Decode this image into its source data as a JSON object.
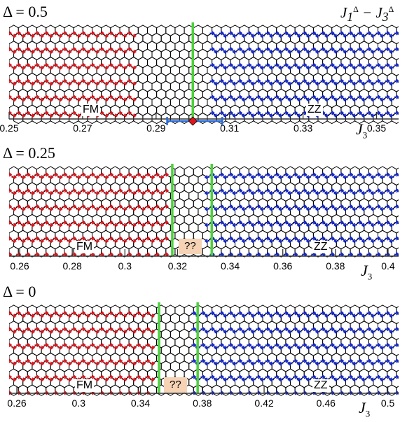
{
  "model_label": {
    "j1": "J",
    "j1_sub": "1",
    "j1_sup": "Δ",
    "dash": " − ",
    "j3": "J",
    "j3_sub": "3",
    "j3_sup": "Δ"
  },
  "axis_symbol": "J",
  "axis_subscript": "3",
  "colors": {
    "fm_spin": "#e0141c",
    "zz_spin": "#1428d2",
    "bond": "#000000",
    "boundary": "#4cd13c",
    "interval": "#2a6cd8",
    "critical_point": "#e0141c",
    "unknown_bg": "#f6d3b4"
  },
  "panels": [
    {
      "delta_label": "Δ = 0.5",
      "fm_label": "FM",
      "zz_label": "ZZ",
      "unknown_label": "",
      "ticks": [
        "0.25",
        "0.27",
        "0.29",
        "0.31",
        "0.33",
        "0.35"
      ],
      "tick_values": [
        0.25,
        0.27,
        0.29,
        0.31,
        0.33,
        0.35
      ],
      "fm_until": 0.286,
      "zz_from": 0.306,
      "boundaries": [
        0.3
      ],
      "critical_point": 0.3,
      "interval": [
        0.293,
        0.308
      ]
    },
    {
      "delta_label": "Δ = 0.25",
      "fm_label": "FM",
      "zz_label": "ZZ",
      "unknown_label": "??",
      "ticks": [
        "0.26",
        "0.28",
        "0.3",
        "0.32",
        "0.34",
        "0.36",
        "0.38",
        "0.4"
      ],
      "tick_values": [
        0.26,
        0.28,
        0.3,
        0.32,
        0.34,
        0.36,
        0.38,
        0.4
      ],
      "fm_until": 0.318,
      "zz_from": 0.333,
      "boundaries": [
        0.318,
        0.333
      ]
    },
    {
      "delta_label": "Δ = 0",
      "fm_label": "FM",
      "zz_label": "ZZ",
      "unknown_label": "??",
      "ticks": [
        "0.26",
        "0.3",
        "0.34",
        "0.38",
        "0.42",
        "0.46",
        "0.5"
      ],
      "tick_values": [
        0.26,
        0.3,
        0.34,
        0.38,
        0.42,
        0.46,
        0.5
      ],
      "fm_until": 0.352,
      "zz_from": 0.377,
      "boundaries": [
        0.352,
        0.377
      ]
    }
  ]
}
